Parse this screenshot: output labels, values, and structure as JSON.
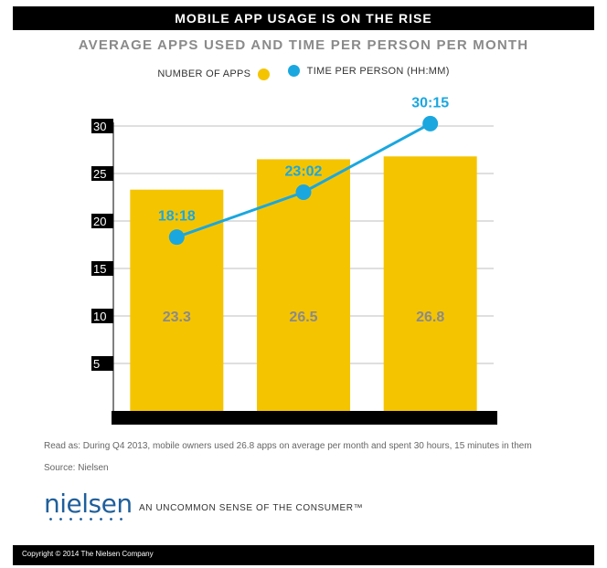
{
  "header": {
    "title": "MOBILE APP USAGE IS ON THE RISE"
  },
  "colors": {
    "bar": "#f5c400",
    "line": "#1aa7df",
    "axis": "#000000",
    "grid": "#bfbfbf",
    "bar_label": "#8a8a8a"
  },
  "chart_data": {
    "type": "bar",
    "title": "AVERAGE APPS USED AND TIME PER PERSON PER MONTH",
    "xlabel": "",
    "ylabel": "",
    "ylim": [
      0,
      30
    ],
    "yticks": [
      "5",
      "10",
      "15",
      "20",
      "25",
      "30"
    ],
    "grid": true,
    "legend_position": "top",
    "categories": [
      "",
      "",
      ""
    ],
    "series": [
      {
        "name": "NUMBER OF APPS",
        "kind": "bar",
        "values": [
          23.3,
          26.5,
          26.8
        ],
        "labels": [
          "23.3",
          "26.5",
          "26.8"
        ]
      },
      {
        "name": "TIME PER PERSON  (HH:MM)",
        "kind": "line",
        "values": [
          18.3,
          23.03,
          30.25
        ],
        "labels": [
          "18:18",
          "23:02",
          "30:15"
        ]
      }
    ]
  },
  "notes": {
    "read_as": "Read as: During Q4 2013, mobile owners used 26.8 apps on average per month and spent 30 hours, 15 minutes in them",
    "source": "Source: Nielsen"
  },
  "brand": {
    "logo": "nielsen",
    "tagline": "AN UNCOMMON SENSE OF THE CONSUMER™"
  },
  "footer": {
    "copyright": "Copyright © 2014 The Nielsen Company"
  }
}
